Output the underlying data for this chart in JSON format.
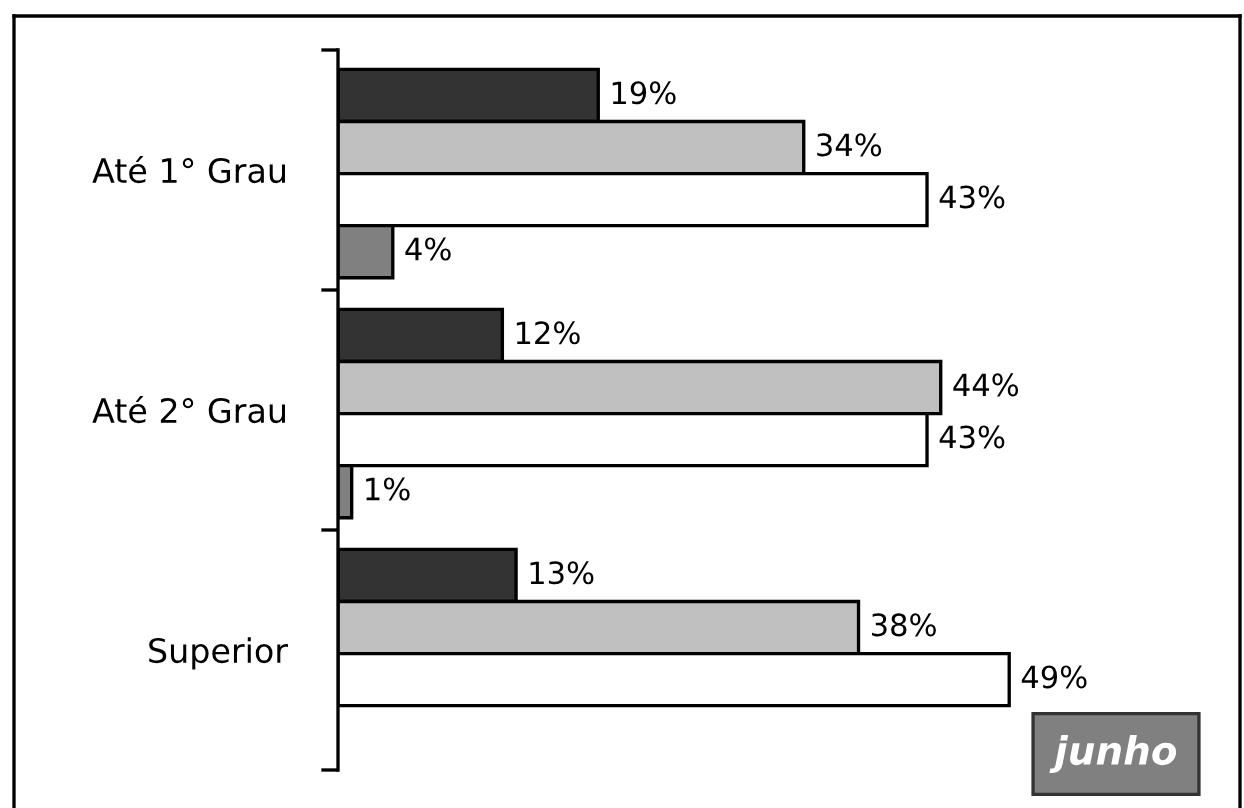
{
  "chart_data": {
    "type": "bar",
    "orientation": "horizontal",
    "categories": [
      "Até 1° Grau",
      "Até 2° Grau",
      "Superior"
    ],
    "series": [
      {
        "color": "#333333",
        "values": [
          19,
          12,
          13
        ],
        "value_labels": [
          "19%",
          "12%",
          "13%"
        ]
      },
      {
        "color": "#c0c0c0",
        "values": [
          34,
          44,
          38
        ],
        "value_labels": [
          "34%",
          "44%",
          "38%"
        ]
      },
      {
        "color": "#ffffff",
        "values": [
          43,
          43,
          49
        ],
        "value_labels": [
          "43%",
          "43%",
          "49%"
        ]
      },
      {
        "color": "#808080",
        "values": [
          4,
          1,
          null
        ],
        "value_labels": [
          "4%",
          "1%",
          null
        ]
      }
    ],
    "tick_labels": "y",
    "grid": false,
    "legend": false,
    "annotations": [
      "junho"
    ]
  }
}
